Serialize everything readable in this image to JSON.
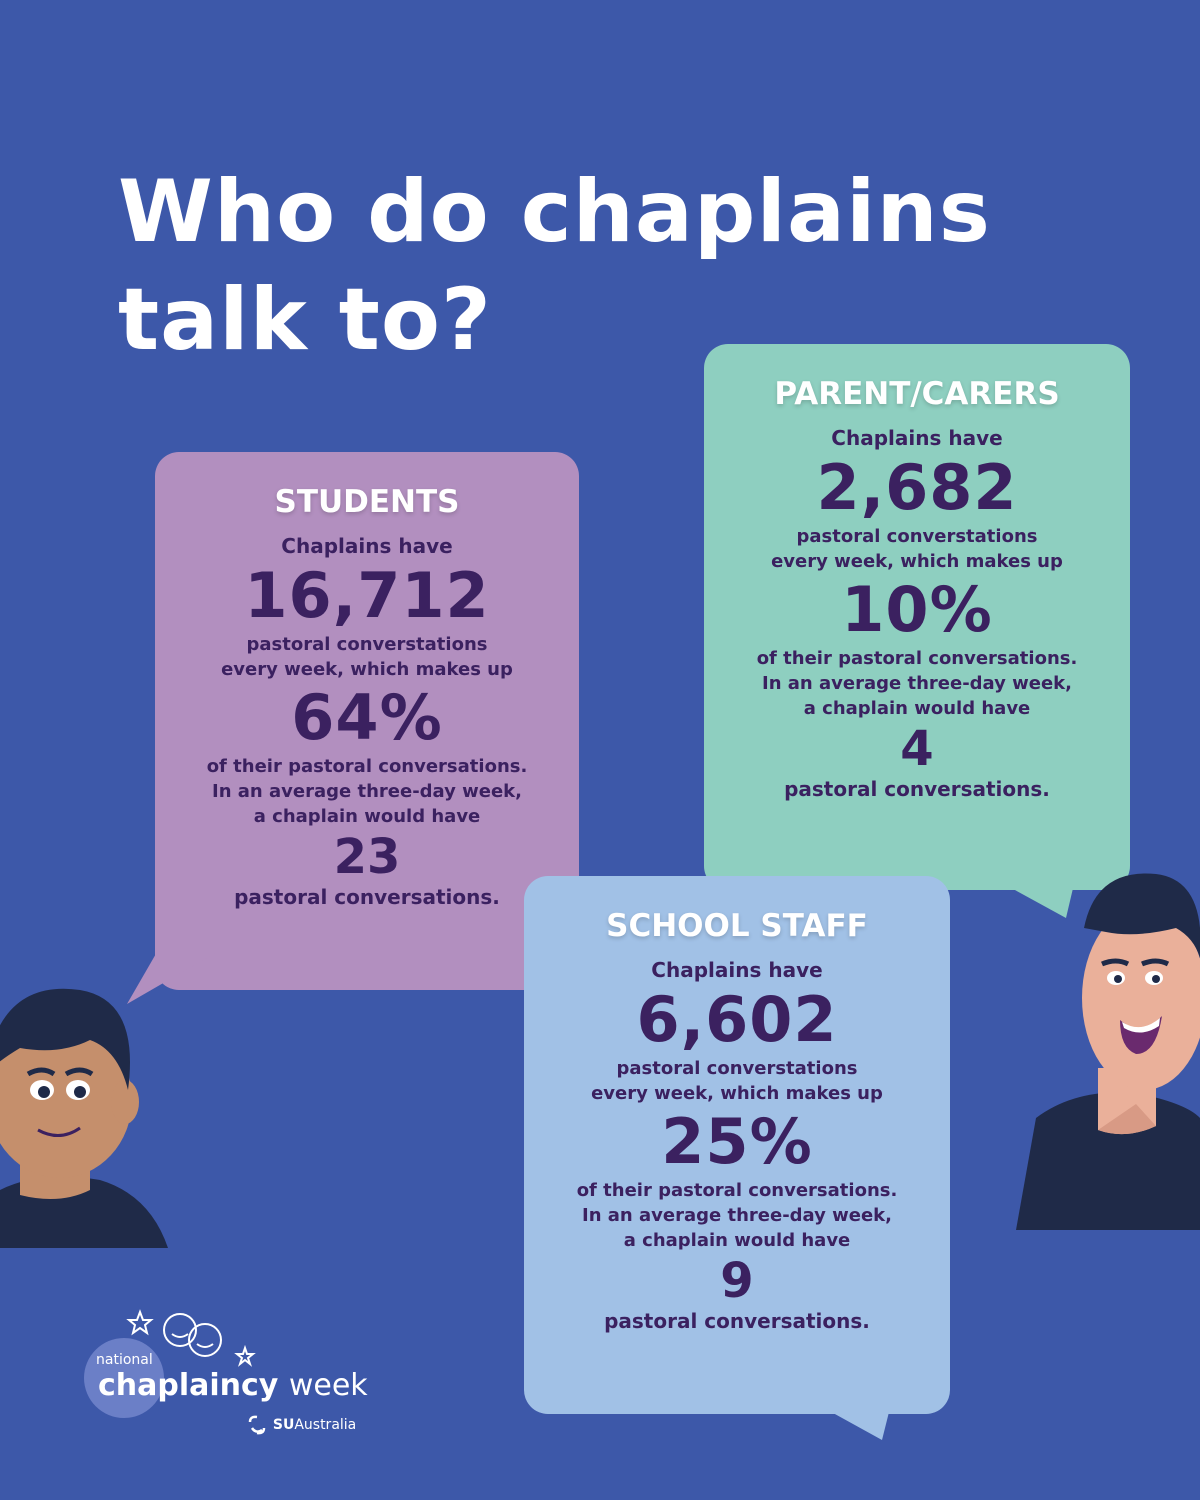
{
  "title_line1": "Who do chaplains",
  "title_line2": "talk to?",
  "students": {
    "heading": "STUDENTS",
    "lead": "Chaplains have",
    "weekly": "16,712",
    "weekly_text_1": "pastoral converstations",
    "weekly_text_2": "every week, which makes up",
    "percent": "64%",
    "percent_text_1": "of their pastoral conversations.",
    "percent_text_2": "In an average three-day week,",
    "percent_text_3": "a chaplain would have",
    "per_week": "23",
    "per_week_text": "pastoral conversations."
  },
  "parents": {
    "heading": "PARENT/CARERS",
    "lead": "Chaplains have",
    "weekly": "2,682",
    "weekly_text_1": "pastoral converstations",
    "weekly_text_2": "every week, which makes up",
    "percent": "10%",
    "percent_text_1": "of their pastoral conversations.",
    "percent_text_2": "In an average three-day week,",
    "percent_text_3": "a chaplain would have",
    "per_week": "4",
    "per_week_text": "pastoral conversations."
  },
  "staff": {
    "heading": "SCHOOL STAFF",
    "lead": "Chaplains have",
    "weekly": "6,602",
    "weekly_text_1": "pastoral converstations",
    "weekly_text_2": "every week, which makes up",
    "percent": "25%",
    "percent_text_1": "of their pastoral conversations.",
    "percent_text_2": "In an average three-day week,",
    "percent_text_3": "a chaplain would have",
    "per_week": "9",
    "per_week_text": "pastoral conversations."
  },
  "logo": {
    "national": "national",
    "chaplaincy": "chaplaincy",
    "week": "week",
    "su": "SU",
    "australia": "Australia"
  },
  "colors": {
    "background": "#3d58a9",
    "students_bubble": "#b28fbf",
    "parents_bubble": "#8ecfc0",
    "staff_bubble": "#a1c1e6",
    "text_dark": "#3b2160"
  },
  "icons": [
    "boy-face-icon",
    "man-face-icon",
    "stars-icon",
    "su-logo-icon"
  ]
}
